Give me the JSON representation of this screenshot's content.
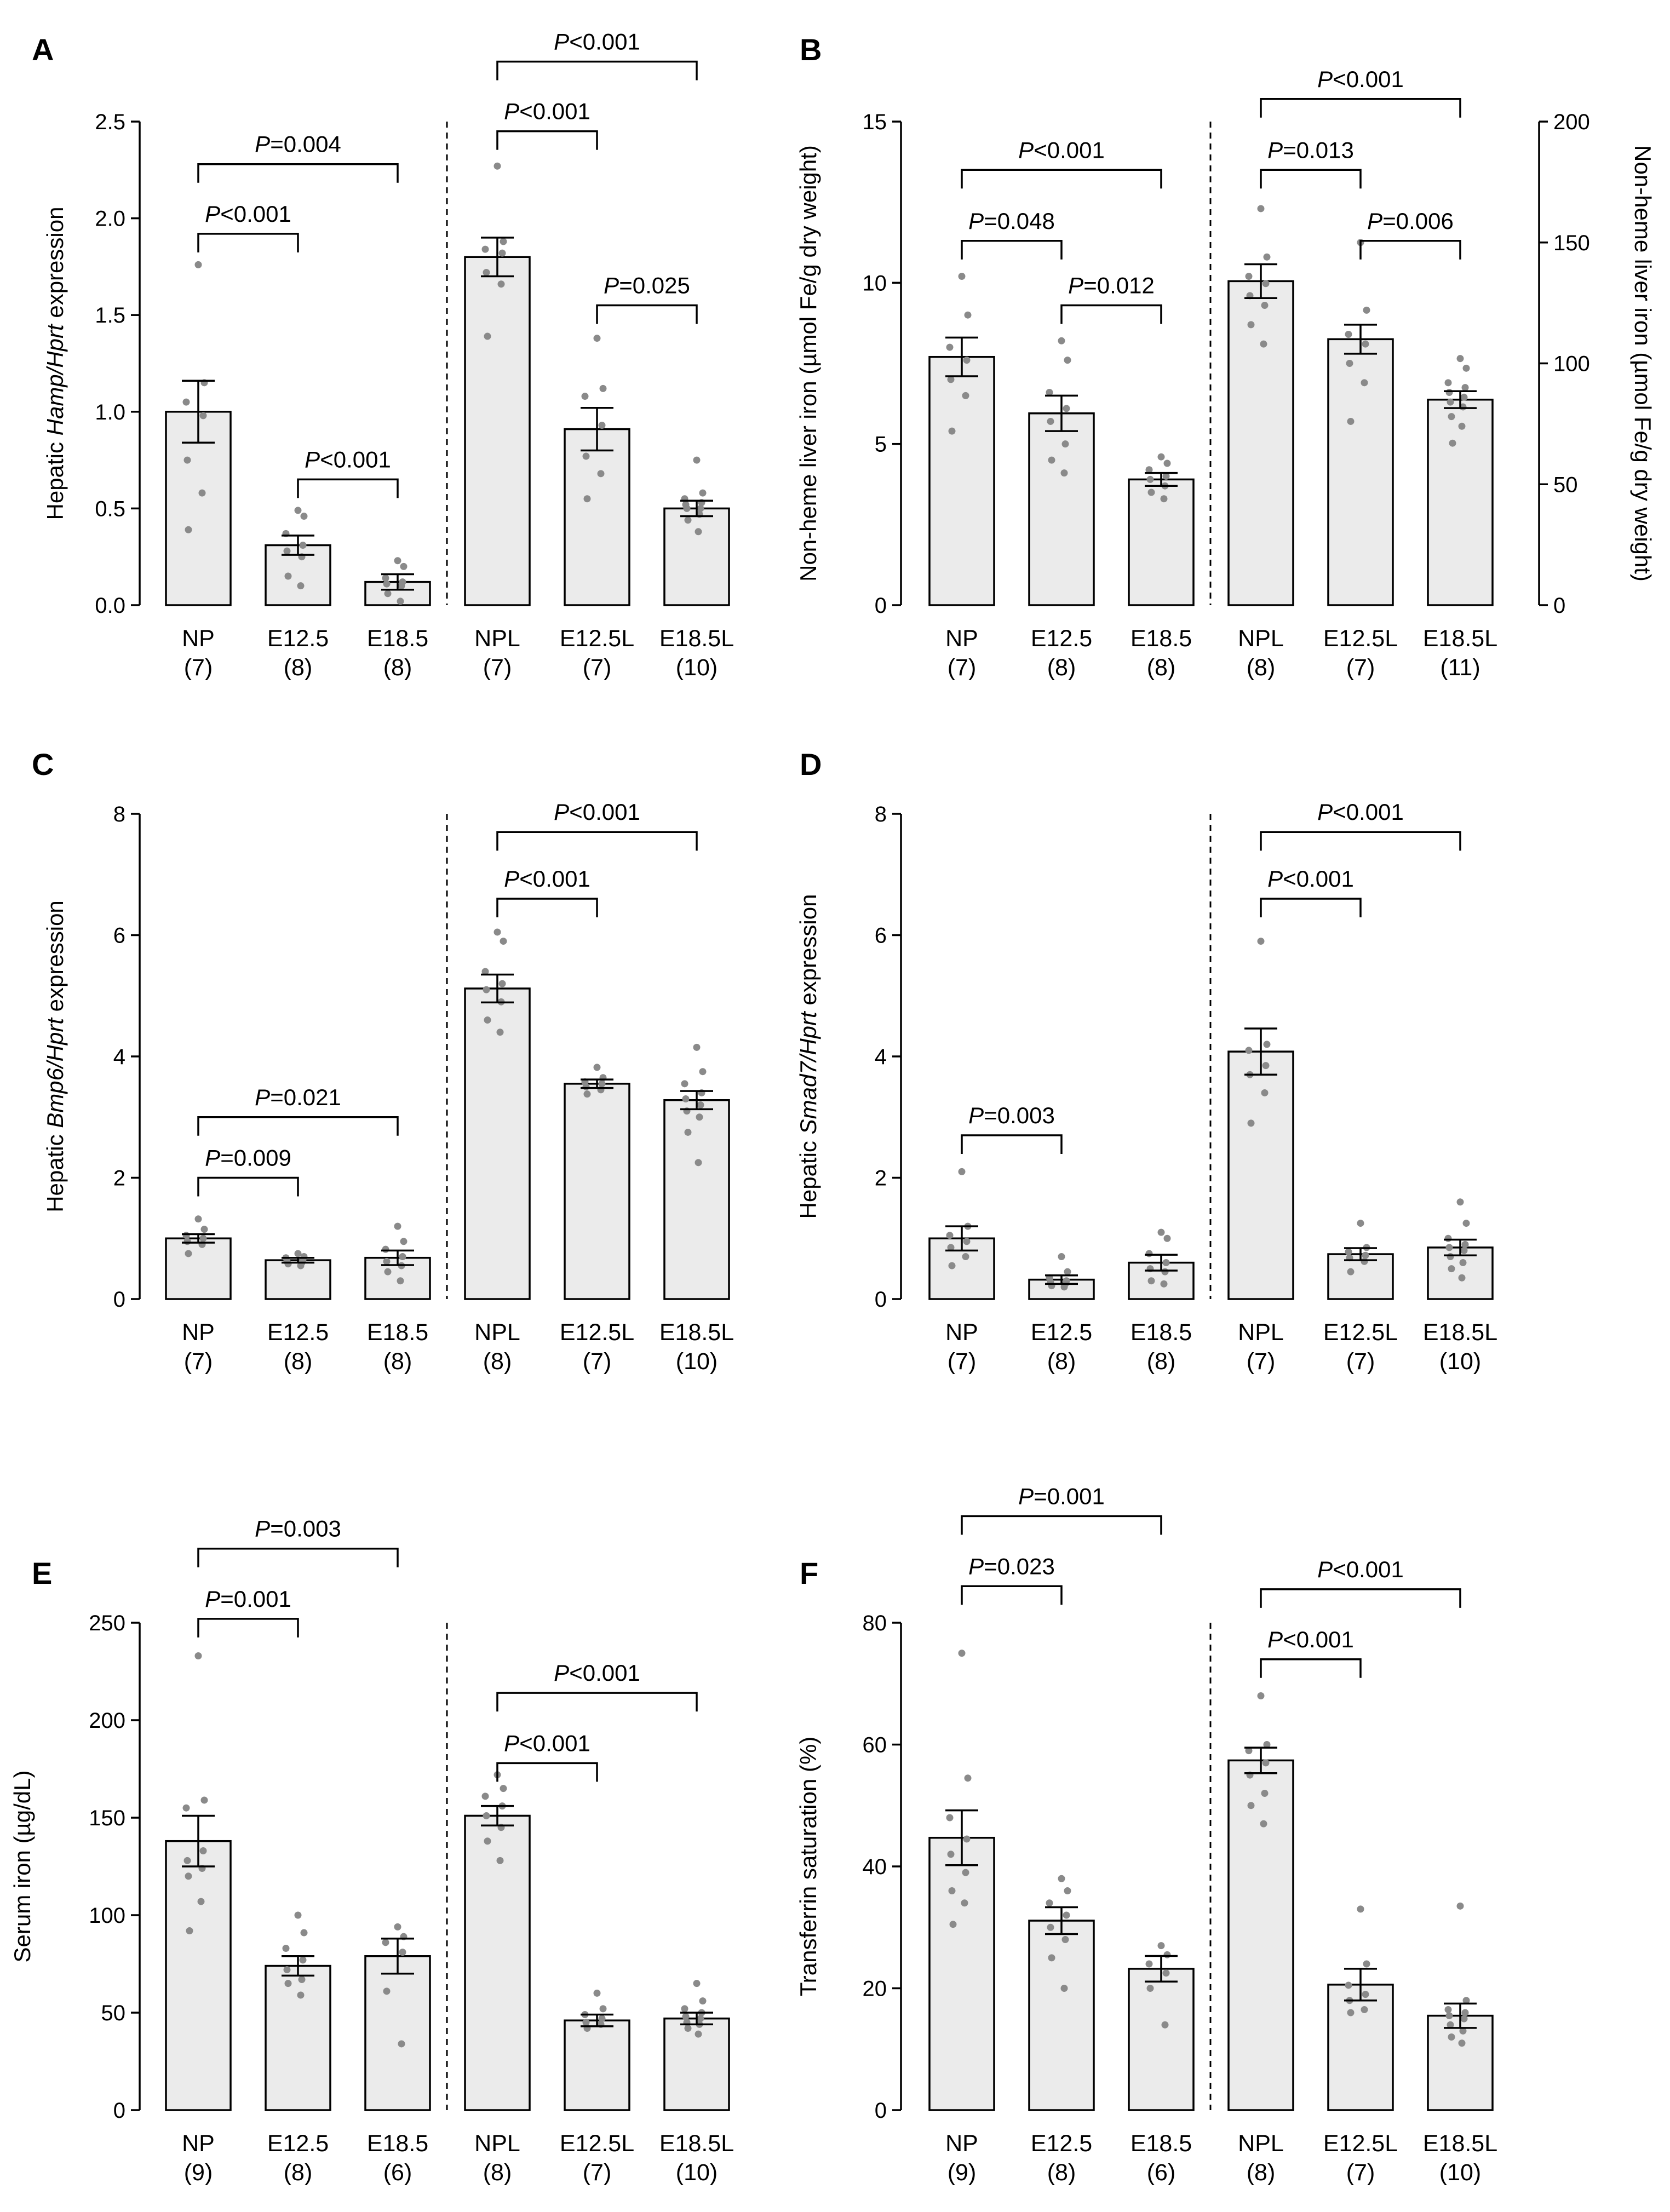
{
  "figure": {
    "panels": [
      {
        "letter": "A",
        "ylabel": [
          "Hepatic ",
          {
            "i": "Hamp/Hprt"
          },
          " expression"
        ]
      },
      {
        "letter": "B",
        "ylabel": [
          "Non-heme liver iron (µmol Fe/g dry weight)"
        ],
        "ylabel_right": [
          "Non-heme liver iron (µmol Fe/g dry weight)"
        ]
      },
      {
        "letter": "C",
        "ylabel": [
          "Hepatic ",
          {
            "i": "Bmp6/Hprt"
          },
          " expression"
        ]
      },
      {
        "letter": "D",
        "ylabel": [
          "Hepatic ",
          {
            "i": "Smad7/Hprt"
          },
          " expression"
        ]
      },
      {
        "letter": "E",
        "ylabel": [
          "Serum iron (µg/dL)"
        ]
      },
      {
        "letter": "F",
        "ylabel": [
          "Transferrin saturation (%)"
        ]
      }
    ]
  },
  "chart_data": [
    {
      "panel": "A",
      "type": "bar",
      "ylabel": "Hepatic Hamp/Hprt expression",
      "ylim": [
        0,
        2.5
      ],
      "yticks": [
        "0.0",
        "0.5",
        "1.0",
        "1.5",
        "2.0",
        "2.5"
      ],
      "categories": [
        "NP",
        "E12.5",
        "E18.5",
        "NPL",
        "E12.5L",
        "E18.5L"
      ],
      "n": [
        "(7)",
        "(8)",
        "(8)",
        "(7)",
        "(7)",
        "(10)"
      ],
      "values": [
        1.0,
        0.31,
        0.12,
        1.8,
        0.91,
        0.5
      ],
      "sem": [
        0.16,
        0.05,
        0.04,
        0.1,
        0.11,
        0.04
      ],
      "points": [
        [
          1.76,
          1.15,
          1.05,
          0.98,
          0.75,
          0.58,
          0.39
        ],
        [
          0.49,
          0.46,
          0.37,
          0.31,
          0.28,
          0.25,
          0.15,
          0.1
        ],
        [
          0.23,
          0.2,
          0.14,
          0.12,
          0.11,
          0.1,
          0.06,
          0.02
        ],
        [
          2.27,
          1.88,
          1.84,
          1.82,
          1.72,
          1.66,
          1.39
        ],
        [
          1.38,
          1.12,
          1.08,
          0.93,
          0.77,
          0.68,
          0.55
        ],
        [
          0.75,
          0.58,
          0.55,
          0.53,
          0.52,
          0.5,
          0.5,
          0.47,
          0.44,
          0.38
        ]
      ],
      "comparisons": [
        {
          "from": 0,
          "to": 1,
          "label": "P<0.001",
          "y": 1.92
        },
        {
          "from": 0,
          "to": 2,
          "label": "P=0.004",
          "y": 2.28
        },
        {
          "from": 1,
          "to": 2,
          "label": "P<0.001",
          "y": 0.65
        },
        {
          "from": 3,
          "to": 4,
          "label": "P<0.001",
          "y": 2.45
        },
        {
          "from": 3,
          "to": 5,
          "label": "P<0.001",
          "y": 2.81
        },
        {
          "from": 4,
          "to": 5,
          "label": "P=0.025",
          "y": 1.55
        }
      ]
    },
    {
      "panel": "B",
      "type": "bar",
      "ylabel": "Non-heme liver iron (µmol Fe/g dry weight)",
      "ylim": [
        0,
        15
      ],
      "yticks": [
        "0",
        "5",
        "10",
        "15"
      ],
      "right_axis": {
        "ylim": [
          0,
          200
        ],
        "yticks": [
          "0",
          "50",
          "100",
          "150",
          "200"
        ],
        "ylabel": "Non-heme liver iron (µmol Fe/g dry weight)",
        "applies_to": "NPL, E12.5L, E18.5L"
      },
      "categories": [
        "NP",
        "E12.5",
        "E18.5",
        "NPL",
        "E12.5L",
        "E18.5L"
      ],
      "n": [
        "(7)",
        "(8)",
        "(8)",
        "(8)",
        "(7)",
        "(11)"
      ],
      "values": [
        7.7,
        5.95,
        3.9,
        134,
        110,
        85
      ],
      "sem": [
        0.6,
        0.55,
        0.2,
        7,
        6,
        3.5
      ],
      "points": [
        [
          10.2,
          9.0,
          8.0,
          7.6,
          7.0,
          6.5,
          5.4
        ],
        [
          8.2,
          7.6,
          6.6,
          6.1,
          5.7,
          5.0,
          4.5,
          4.1
        ],
        [
          4.6,
          4.4,
          4.2,
          4.0,
          3.9,
          3.7,
          3.5,
          3.3
        ],
        [
          164,
          144,
          136,
          133,
          128,
          124,
          116,
          108
        ],
        [
          150,
          122,
          112,
          108,
          100,
          92,
          76
        ],
        [
          102,
          98,
          92,
          90,
          88,
          86,
          84,
          82,
          78,
          74,
          67
        ]
      ],
      "comparisons": [
        {
          "from": 0,
          "to": 1,
          "label": "P=0.048",
          "y": 11.3
        },
        {
          "from": 0,
          "to": 2,
          "label": "P<0.001",
          "y": 13.5
        },
        {
          "from": 1,
          "to": 2,
          "label": "P=0.012",
          "y": 9.3
        },
        {
          "from": 3,
          "to": 4,
          "label": "P=0.013",
          "y": 13.5
        },
        {
          "from": 3,
          "to": 5,
          "label": "P<0.001",
          "y": 15.7
        },
        {
          "from": 4,
          "to": 5,
          "label": "P=0.006",
          "y": 11.3
        }
      ]
    },
    {
      "panel": "C",
      "type": "bar",
      "ylabel": "Hepatic Bmp6/Hprt expression",
      "ylim": [
        0,
        8
      ],
      "yticks": [
        "0",
        "2",
        "4",
        "6",
        "8"
      ],
      "categories": [
        "NP",
        "E12.5",
        "E18.5",
        "NPL",
        "E12.5L",
        "E18.5L"
      ],
      "n": [
        "(7)",
        "(8)",
        "(8)",
        "(8)",
        "(7)",
        "(10)"
      ],
      "values": [
        1.0,
        0.64,
        0.68,
        5.12,
        3.55,
        3.28
      ],
      "sem": [
        0.07,
        0.04,
        0.12,
        0.23,
        0.07,
        0.15
      ],
      "points": [
        [
          1.32,
          1.15,
          1.05,
          1.0,
          0.95,
          0.9,
          0.75
        ],
        [
          0.75,
          0.7,
          0.68,
          0.65,
          0.62,
          0.6,
          0.58,
          0.55
        ],
        [
          1.2,
          0.95,
          0.82,
          0.7,
          0.62,
          0.55,
          0.45,
          0.3
        ],
        [
          6.05,
          5.9,
          5.4,
          5.2,
          5.1,
          4.9,
          4.6,
          4.4
        ],
        [
          3.82,
          3.65,
          3.58,
          3.55,
          3.5,
          3.45,
          3.38
        ],
        [
          4.15,
          3.75,
          3.55,
          3.4,
          3.3,
          3.2,
          3.1,
          3.0,
          2.75,
          2.25
        ]
      ],
      "comparisons": [
        {
          "from": 0,
          "to": 1,
          "label": "P=0.009",
          "y": 2.0
        },
        {
          "from": 0,
          "to": 2,
          "label": "P=0.021",
          "y": 3.0
        },
        {
          "from": 3,
          "to": 4,
          "label": "P<0.001",
          "y": 6.6
        },
        {
          "from": 3,
          "to": 5,
          "label": "P<0.001",
          "y": 7.7
        }
      ]
    },
    {
      "panel": "D",
      "type": "bar",
      "ylabel": "Hepatic Smad7/Hprt expression",
      "ylim": [
        0,
        8
      ],
      "yticks": [
        "0",
        "2",
        "4",
        "6",
        "8"
      ],
      "categories": [
        "NP",
        "E12.5",
        "E18.5",
        "NPL",
        "E12.5L",
        "E18.5L"
      ],
      "n": [
        "(7)",
        "(8)",
        "(8)",
        "(7)",
        "(7)",
        "(10)"
      ],
      "values": [
        1.0,
        0.32,
        0.6,
        4.08,
        0.74,
        0.85
      ],
      "sem": [
        0.2,
        0.07,
        0.13,
        0.38,
        0.1,
        0.13
      ],
      "points": [
        [
          2.1,
          1.2,
          1.05,
          0.95,
          0.85,
          0.7,
          0.55
        ],
        [
          0.7,
          0.45,
          0.35,
          0.3,
          0.28,
          0.25,
          0.22,
          0.2
        ],
        [
          1.1,
          1.0,
          0.75,
          0.6,
          0.5,
          0.45,
          0.3,
          0.25
        ],
        [
          5.9,
          4.2,
          4.1,
          3.85,
          3.7,
          3.4,
          2.9
        ],
        [
          1.25,
          0.85,
          0.78,
          0.72,
          0.68,
          0.62,
          0.45
        ],
        [
          1.6,
          1.25,
          1.0,
          0.9,
          0.85,
          0.8,
          0.7,
          0.6,
          0.5,
          0.35
        ]
      ],
      "comparisons": [
        {
          "from": 0,
          "to": 1,
          "label": "P=0.003",
          "y": 2.7
        },
        {
          "from": 3,
          "to": 4,
          "label": "P<0.001",
          "y": 6.6
        },
        {
          "from": 3,
          "to": 5,
          "label": "P<0.001",
          "y": 7.7
        }
      ]
    },
    {
      "panel": "E",
      "type": "bar",
      "ylabel": "Serum iron (µg/dL)",
      "ylim": [
        0,
        250
      ],
      "yticks": [
        "0",
        "50",
        "100",
        "150",
        "200",
        "250"
      ],
      "categories": [
        "NP",
        "E12.5",
        "E18.5",
        "NPL",
        "E12.5L",
        "E18.5L"
      ],
      "n": [
        "(9)",
        "(8)",
        "(6)",
        "(8)",
        "(7)",
        "(10)"
      ],
      "values": [
        138,
        74,
        79,
        151,
        46,
        47
      ],
      "sem": [
        13,
        5,
        9,
        5,
        3,
        3
      ],
      "points": [
        [
          233,
          159,
          155,
          133,
          128,
          124,
          120,
          107,
          92
        ],
        [
          100,
          91,
          83,
          77,
          72,
          67,
          65,
          59
        ],
        [
          94,
          89,
          86,
          81,
          61,
          34
        ],
        [
          172,
          165,
          161,
          156,
          151,
          145,
          138,
          128
        ],
        [
          60,
          52,
          49,
          47,
          45,
          44,
          42
        ],
        [
          65,
          56,
          52,
          50,
          48,
          47,
          45,
          44,
          42,
          39
        ]
      ],
      "comparisons": [
        {
          "from": 0,
          "to": 1,
          "label": "P=0.001",
          "y": 252
        },
        {
          "from": 0,
          "to": 2,
          "label": "P=0.003",
          "y": 288
        },
        {
          "from": 3,
          "to": 4,
          "label": "P<0.001",
          "y": 178
        },
        {
          "from": 3,
          "to": 5,
          "label": "P<0.001",
          "y": 214
        }
      ]
    },
    {
      "panel": "F",
      "type": "bar",
      "ylabel": "Transferrin saturation (%)",
      "ylim": [
        0,
        80
      ],
      "yticks": [
        "0",
        "20",
        "40",
        "60",
        "80"
      ],
      "categories": [
        "NP",
        "E12.5",
        "E18.5",
        "NPL",
        "E12.5L",
        "E18.5L"
      ],
      "n": [
        "(9)",
        "(8)",
        "(6)",
        "(8)",
        "(7)",
        "(10)"
      ],
      "values": [
        44.7,
        31.1,
        23.2,
        57.4,
        20.6,
        15.5
      ],
      "sem": [
        4.5,
        2.2,
        2.1,
        2.1,
        2.6,
        2.0
      ],
      "points": [
        [
          75,
          54.5,
          48,
          44.5,
          42,
          39,
          36,
          34,
          30.5
        ],
        [
          38,
          36,
          34,
          32,
          30,
          28,
          25,
          20
        ],
        [
          27,
          25.5,
          24,
          22.5,
          20,
          14
        ],
        [
          68,
          60,
          59,
          57,
          55,
          52,
          50,
          47
        ],
        [
          33,
          24,
          20.5,
          19,
          18,
          16.5,
          16
        ],
        [
          33.5,
          18,
          16.5,
          16,
          15.5,
          15,
          14,
          13,
          12,
          11
        ]
      ],
      "comparisons": [
        {
          "from": 0,
          "to": 1,
          "label": "P=0.023",
          "y": 86
        },
        {
          "from": 0,
          "to": 2,
          "label": "P=0.001",
          "y": 97.5
        },
        {
          "from": 3,
          "to": 4,
          "label": "P<0.001",
          "y": 74
        },
        {
          "from": 3,
          "to": 5,
          "label": "P<0.001",
          "y": 85.5
        }
      ]
    }
  ]
}
